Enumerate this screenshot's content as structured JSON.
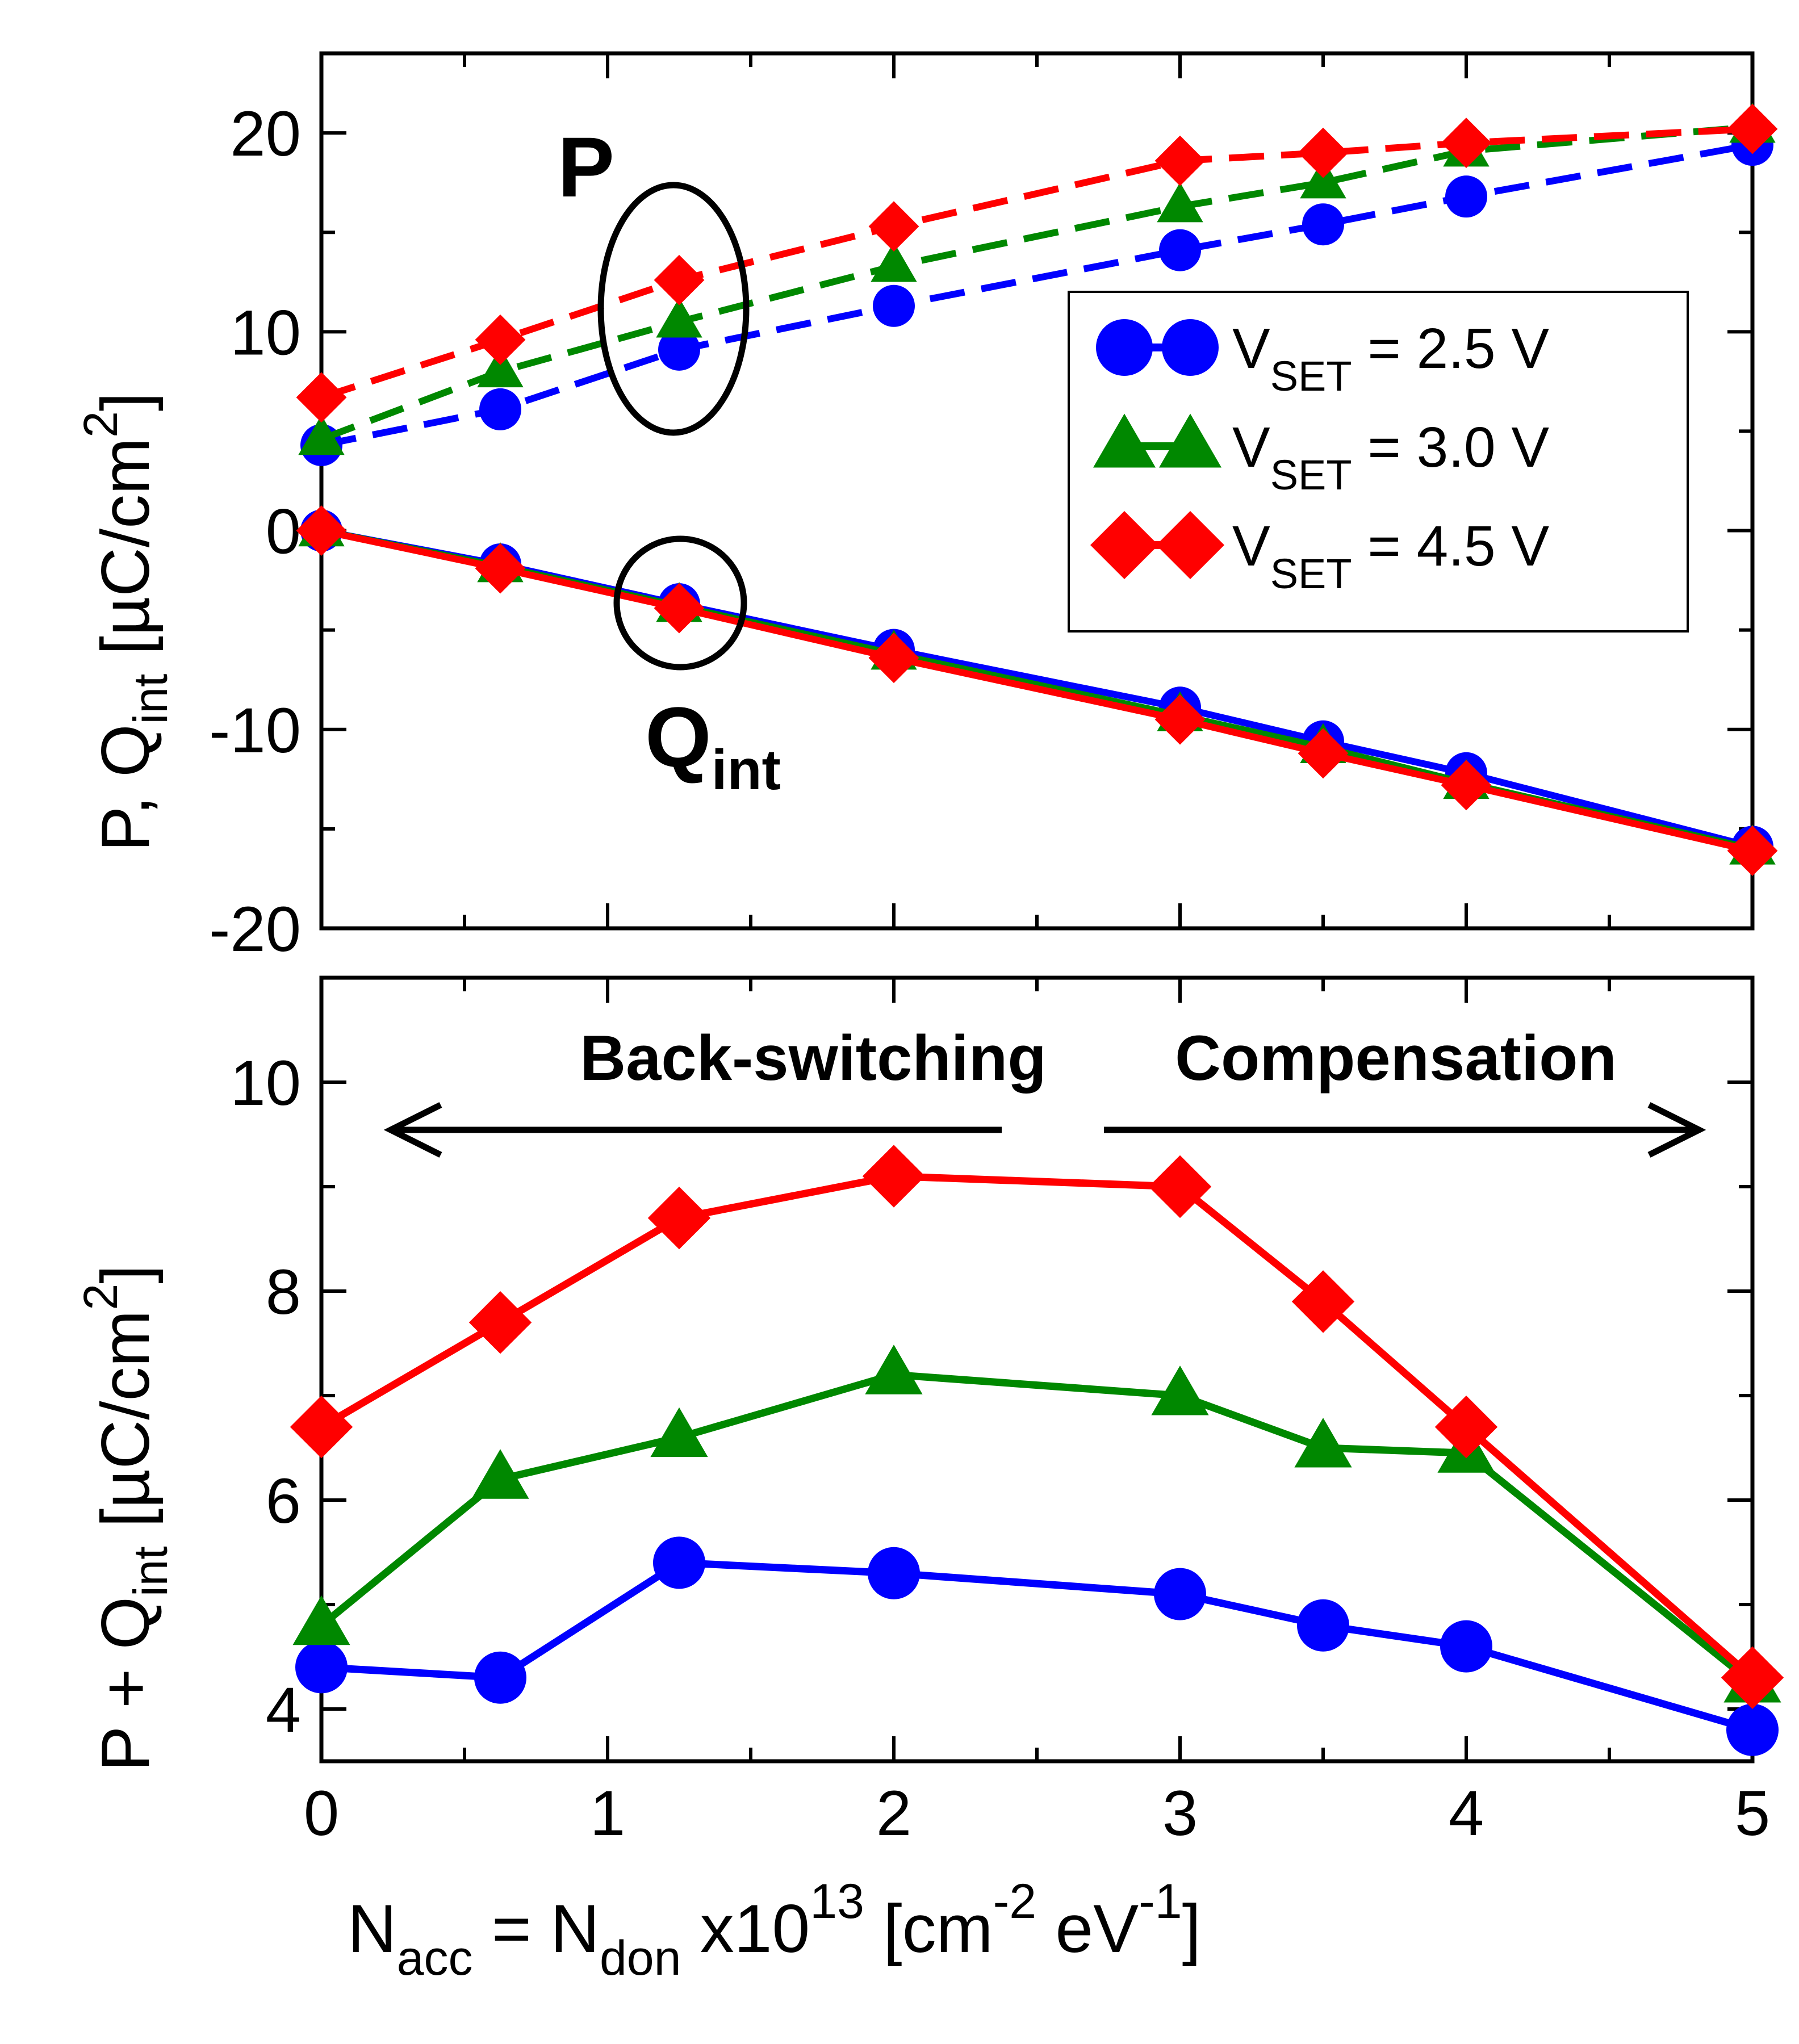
{
  "chart_data": [
    {
      "type": "line",
      "panel": "top",
      "ylabel": "P, Q_int [µC/cm^2]",
      "ylabel_parts": {
        "a": "P, Q",
        "sub": "int",
        "b": " [µC/cm",
        "sup": "2",
        "c": "]"
      },
      "ylim": [
        -20,
        24
      ],
      "yticks": [
        "20",
        "10",
        "0",
        "-10",
        "-20"
      ],
      "ytick_values": [
        20,
        10,
        0,
        -10,
        -20
      ],
      "xlim": [
        0,
        5
      ],
      "grid": false,
      "legend_placement": "center-right",
      "series": [
        {
          "group": "P",
          "style": "dashed",
          "marker": "circle",
          "color": "#0000ff",
          "x": [
            0,
            0.625,
            1.25,
            2,
            3,
            3.5,
            4,
            5
          ],
          "y": [
            4.3,
            6.1,
            9.1,
            11.3,
            14.1,
            15.4,
            16.8,
            19.4
          ]
        },
        {
          "group": "P",
          "style": "dashed",
          "marker": "triangle",
          "color": "#008800",
          "x": [
            0,
            0.625,
            1.25,
            2,
            3,
            3.5,
            4,
            5
          ],
          "y": [
            4.6,
            8.0,
            10.5,
            13.3,
            16.3,
            17.5,
            19.1,
            20.3
          ]
        },
        {
          "group": "P",
          "style": "dashed",
          "marker": "diamond",
          "color": "#ff0000",
          "x": [
            0,
            0.625,
            1.25,
            2,
            3,
            3.5,
            4,
            5
          ],
          "y": [
            6.7,
            9.6,
            12.6,
            15.3,
            18.6,
            19.0,
            19.5,
            20.2
          ]
        },
        {
          "group": "Q_int",
          "style": "solid",
          "marker": "circle",
          "color": "#0000ff",
          "x": [
            0,
            0.625,
            1.25,
            2,
            3,
            3.5,
            4,
            5
          ],
          "y": [
            0,
            -1.7,
            -3.7,
            -6.0,
            -8.9,
            -10.6,
            -12.2,
            -15.9
          ]
        },
        {
          "group": "Q_int",
          "style": "solid",
          "marker": "triangle",
          "color": "#008800",
          "x": [
            0,
            0.625,
            1.25,
            2,
            3,
            3.5,
            4,
            5
          ],
          "y": [
            0,
            -1.8,
            -3.8,
            -6.2,
            -9.3,
            -10.9,
            -12.7,
            -16.0
          ]
        },
        {
          "group": "Q_int",
          "style": "solid",
          "marker": "diamond",
          "color": "#ff0000",
          "x": [
            0,
            0.625,
            1.25,
            2,
            3,
            3.5,
            4,
            5
          ],
          "y": [
            0,
            -1.9,
            -3.9,
            -6.4,
            -9.5,
            -11.2,
            -12.8,
            -16.1
          ]
        }
      ]
    },
    {
      "type": "line",
      "panel": "bottom",
      "ylabel": "P + Q_int [µC/cm^2]",
      "ylabel_parts": {
        "a": "P + Q",
        "sub": "int",
        "b": " [µC/cm",
        "sup": "2",
        "c": "]"
      },
      "ylim": [
        3.5,
        11
      ],
      "yticks": [
        "10",
        "8",
        "6",
        "4"
      ],
      "ytick_values": [
        10,
        8,
        6,
        4
      ],
      "xlim": [
        0,
        5
      ],
      "xticks": [
        "0",
        "1",
        "2",
        "3",
        "4",
        "5"
      ],
      "xtick_values": [
        0,
        1,
        2,
        3,
        4,
        5
      ],
      "grid": false,
      "series": [
        {
          "style": "solid",
          "marker": "circle",
          "color": "#0000ff",
          "x": [
            0,
            0.625,
            1.25,
            2,
            3,
            3.5,
            4,
            5
          ],
          "y": [
            4.4,
            4.3,
            5.4,
            5.3,
            5.1,
            4.8,
            4.6,
            3.8
          ]
        },
        {
          "style": "solid",
          "marker": "triangle",
          "color": "#008800",
          "x": [
            0,
            0.625,
            1.25,
            2,
            3,
            3.5,
            4,
            5
          ],
          "y": [
            4.8,
            6.2,
            6.6,
            7.2,
            7.0,
            6.5,
            6.45,
            4.25
          ]
        },
        {
          "style": "solid",
          "marker": "diamond",
          "color": "#ff0000",
          "x": [
            0,
            0.625,
            1.25,
            2,
            3,
            3.5,
            4,
            5
          ],
          "y": [
            6.7,
            7.7,
            8.7,
            9.1,
            9.0,
            7.9,
            6.7,
            4.3
          ]
        }
      ]
    }
  ],
  "legend": [
    {
      "marker": "circle",
      "color": "#0000ff",
      "main": "V",
      "sub": "SET",
      "rest": " = 2.5 V"
    },
    {
      "marker": "triangle",
      "color": "#008800",
      "main": "V",
      "sub": "SET",
      "rest": " = 3.0 V"
    },
    {
      "marker": "diamond",
      "color": "#ff0000",
      "main": "V",
      "sub": "SET",
      "rest": " = 4.5 V"
    }
  ],
  "annotations": {
    "p_label": "P",
    "q_label_main": "Q",
    "q_label_sub": "int",
    "back_switching": "Back-switching",
    "compensation": "Compensation"
  },
  "xlabel_parts": {
    "n1": "N",
    "sub1": "acc",
    "eq": " = N",
    "sub2": "don",
    "x10": "  x10",
    "sup13": "13",
    "br": " [cm",
    "supm2": "-2",
    "ev": " eV",
    "supm1": "-1",
    "close": "]"
  }
}
